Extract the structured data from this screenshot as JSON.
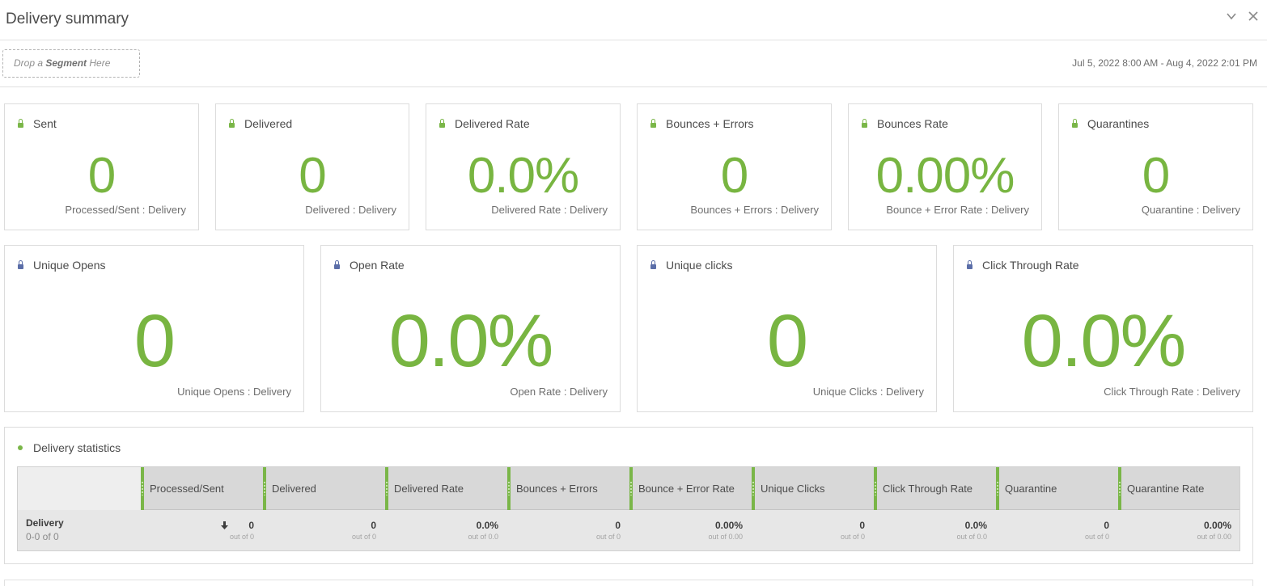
{
  "header": {
    "title": "Delivery summary",
    "collapse_icon": "chevron-down-icon",
    "close_icon": "close-icon"
  },
  "segment_bar": {
    "drop_prefix": "Drop a ",
    "drop_bold": "Segment",
    "drop_suffix": " Here",
    "date_range": "Jul 5, 2022 8:00 AM - Aug 4, 2022 2:01 PM"
  },
  "summary_cards": [
    {
      "label": "Sent",
      "value": "0",
      "footer": "Processed/Sent : Delivery",
      "lock_color": "#7ab648"
    },
    {
      "label": "Delivered",
      "value": "0",
      "footer": "Delivered : Delivery",
      "lock_color": "#7ab648"
    },
    {
      "label": "Delivered Rate",
      "value": "0.0%",
      "footer": "Delivered Rate : Delivery",
      "lock_color": "#7ab648"
    },
    {
      "label": "Bounces + Errors",
      "value": "0",
      "footer": "Bounces + Errors : Delivery",
      "lock_color": "#7ab648"
    },
    {
      "label": "Bounces Rate",
      "value": "0.00%",
      "footer": "Bounce + Error Rate : Delivery",
      "lock_color": "#7ab648"
    },
    {
      "label": "Quarantines",
      "value": "0",
      "footer": "Quarantine : Delivery",
      "lock_color": "#7ab648"
    }
  ],
  "engagement_cards": [
    {
      "label": "Unique Opens",
      "value": "0",
      "footer": "Unique Opens : Delivery",
      "lock_color": "#5b6ea8"
    },
    {
      "label": "Open Rate",
      "value": "0.0%",
      "footer": "Open Rate : Delivery",
      "lock_color": "#5b6ea8"
    },
    {
      "label": "Unique clicks",
      "value": "0",
      "footer": "Unique Clicks : Delivery",
      "lock_color": "#5b6ea8"
    },
    {
      "label": "Click Through Rate",
      "value": "0.0%",
      "footer": "Click Through Rate : Delivery",
      "lock_color": "#5b6ea8"
    }
  ],
  "statistics": {
    "title": "Delivery statistics",
    "columns": [
      "Processed/Sent",
      "Delivered",
      "Delivered Rate",
      "Bounces + Errors",
      "Bounce + Error Rate",
      "Unique Clicks",
      "Click Through Rate",
      "Quarantine",
      "Quarantine Rate"
    ],
    "row": {
      "name": "Delivery",
      "range": "0-0 of 0",
      "cells": [
        {
          "value": "0",
          "sub": "out of 0"
        },
        {
          "value": "0",
          "sub": "out of 0"
        },
        {
          "value": "0.0%",
          "sub": "out of 0.0"
        },
        {
          "value": "0",
          "sub": "out of 0"
        },
        {
          "value": "0.00%",
          "sub": "out of 0.00"
        },
        {
          "value": "0",
          "sub": "out of 0"
        },
        {
          "value": "0.0%",
          "sub": "out of 0.0"
        },
        {
          "value": "0",
          "sub": "out of 0"
        },
        {
          "value": "0.00%",
          "sub": "out of 0.00"
        }
      ]
    }
  },
  "colors": {
    "accent_green": "#7ab648",
    "metric_value": "#78b541",
    "lock_blue": "#5b6ea8"
  }
}
